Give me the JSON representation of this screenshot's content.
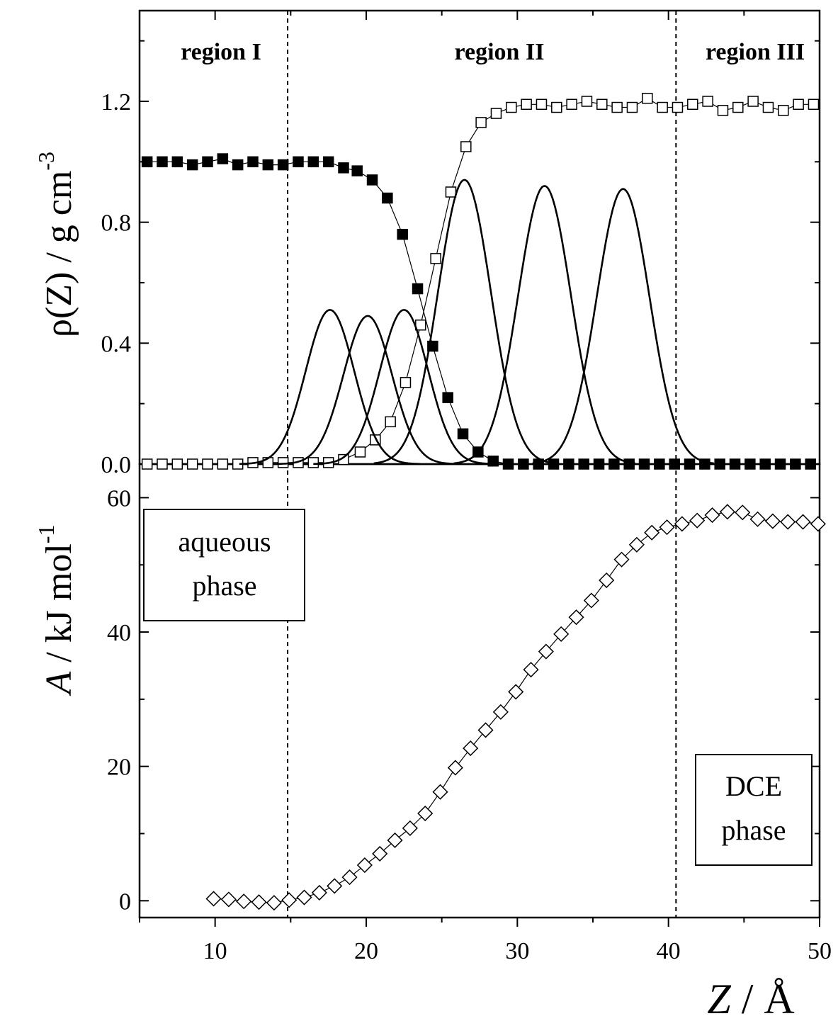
{
  "chart_data": [
    {
      "type": "line",
      "panel": "top",
      "ylabel_rho": "ρ",
      "ylabel_paren": "(Z) / g cm",
      "ylabel_exp": "-3",
      "ylim": [
        0.0,
        1.5
      ],
      "yticks": [
        "0.0",
        "0.4",
        "0.8",
        "1.2"
      ],
      "xlim": [
        5,
        50
      ],
      "region_labels": [
        "region I",
        "region II",
        "region III"
      ],
      "dividers_x": [
        14.8,
        40.5
      ],
      "series": [
        {
          "marker": "filled-square",
          "x": [
            5.5,
            6.5,
            7.5,
            8.5,
            9.5,
            10.5,
            11.5,
            12.5,
            13.5,
            14.5,
            15.5,
            16.5,
            17.5,
            18.5,
            19.4,
            20.4,
            21.4,
            22.4,
            23.4,
            24.4,
            25.4,
            26.4,
            27.4,
            28.4,
            29.4,
            30.4,
            31.4,
            32.4,
            33.4,
            34.4,
            35.4,
            36.4,
            37.4,
            38.4,
            39.4,
            40.4,
            41.4,
            42.4,
            43.4,
            44.4,
            45.4,
            46.4,
            47.4,
            48.4,
            49.4
          ],
          "y": [
            1.0,
            1.0,
            1.0,
            0.99,
            1.0,
            1.01,
            0.99,
            1.0,
            0.99,
            0.99,
            1.0,
            1.0,
            1.0,
            0.98,
            0.97,
            0.94,
            0.88,
            0.76,
            0.58,
            0.39,
            0.22,
            0.1,
            0.04,
            0.01,
            0.0,
            0.0,
            0.0,
            0.0,
            0.0,
            0.0,
            0.0,
            0.0,
            0.0,
            0.0,
            0.0,
            0.0,
            0.0,
            0.0,
            0.0,
            0.0,
            0.0,
            0.0,
            0.0,
            0.0,
            0.0
          ]
        },
        {
          "marker": "open-square",
          "x": [
            5.5,
            6.5,
            7.5,
            8.5,
            9.5,
            10.5,
            11.5,
            12.5,
            13.5,
            14.5,
            15.5,
            16.5,
            17.5,
            18.5,
            19.6,
            20.6,
            21.6,
            22.6,
            23.6,
            24.6,
            25.6,
            26.6,
            27.6,
            28.6,
            29.6,
            30.6,
            31.6,
            32.6,
            33.6,
            34.6,
            35.6,
            36.6,
            37.6,
            38.6,
            39.6,
            40.6,
            41.6,
            42.6,
            43.6,
            44.6,
            45.6,
            46.6,
            47.6,
            48.6,
            49.6
          ],
          "y": [
            0.0,
            0.0,
            0.0,
            0.0,
            0.0,
            0.0,
            0.0,
            0.005,
            0.005,
            0.005,
            0.005,
            0.005,
            0.005,
            0.015,
            0.04,
            0.08,
            0.14,
            0.27,
            0.46,
            0.68,
            0.9,
            1.05,
            1.13,
            1.16,
            1.18,
            1.19,
            1.19,
            1.18,
            1.19,
            1.2,
            1.19,
            1.18,
            1.18,
            1.21,
            1.18,
            1.18,
            1.19,
            1.2,
            1.17,
            1.18,
            1.2,
            1.18,
            1.17,
            1.19,
            1.19
          ]
        },
        {
          "marker": "none",
          "shape": "gaussian",
          "center": 17.6,
          "amplitude": 0.51,
          "sigma": 1.6
        },
        {
          "marker": "none",
          "shape": "gaussian",
          "center": 20.1,
          "amplitude": 0.49,
          "sigma": 1.6
        },
        {
          "marker": "none",
          "shape": "gaussian",
          "center": 22.5,
          "amplitude": 0.51,
          "sigma": 1.6
        },
        {
          "marker": "none",
          "shape": "gaussian",
          "center": 26.5,
          "amplitude": 0.94,
          "sigma": 1.75
        },
        {
          "marker": "none",
          "shape": "gaussian",
          "center": 31.8,
          "amplitude": 0.92,
          "sigma": 1.75
        },
        {
          "marker": "none",
          "shape": "gaussian",
          "center": 37.0,
          "amplitude": 0.91,
          "sigma": 1.75
        }
      ]
    },
    {
      "type": "line",
      "panel": "bottom",
      "ylabel_a": "A",
      "ylabel_rest": " / kJ mol",
      "ylabel_exp": "-1",
      "ylim": [
        -2.5,
        65
      ],
      "yticks": [
        "0",
        "20",
        "40",
        "60"
      ],
      "xlim": [
        5,
        50
      ],
      "xlabel_z": "Z",
      "xlabel_rest": " / Å",
      "xticks": [
        "10",
        "20",
        "30",
        "40",
        "50"
      ],
      "box_aqueous": [
        "aqueous",
        "phase"
      ],
      "box_dce": [
        "DCE",
        "phase"
      ],
      "series": [
        {
          "marker": "open-diamond",
          "x": [
            9.9,
            10.9,
            11.9,
            12.9,
            13.9,
            14.9,
            15.9,
            16.9,
            17.9,
            18.9,
            19.9,
            20.9,
            21.9,
            22.9,
            23.9,
            24.9,
            25.9,
            26.9,
            27.9,
            28.9,
            29.9,
            30.9,
            31.9,
            32.9,
            33.9,
            34.9,
            35.9,
            36.9,
            37.9,
            38.9,
            39.9,
            40.9,
            41.9,
            42.9,
            43.9,
            44.9,
            45.9,
            46.9,
            47.9,
            48.9,
            49.9
          ],
          "y": [
            0.3,
            0.2,
            -0.1,
            -0.2,
            -0.3,
            0.1,
            0.5,
            1.2,
            2.2,
            3.5,
            5.3,
            7.0,
            9.0,
            10.8,
            13.0,
            16.2,
            19.8,
            22.7,
            25.4,
            28.1,
            31.1,
            34.4,
            37.1,
            39.7,
            42.2,
            44.7,
            47.7,
            50.8,
            53.0,
            54.8,
            55.6,
            56.1,
            56.6,
            57.4,
            57.9,
            57.8,
            56.8,
            56.5,
            56.4,
            56.4,
            56.1
          ]
        }
      ]
    }
  ]
}
